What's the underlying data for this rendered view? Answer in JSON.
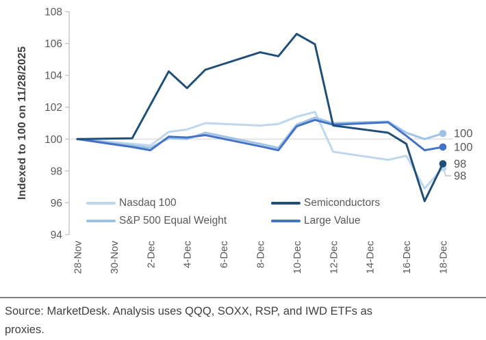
{
  "source": {
    "text": "Source: MarketDesk. Analysis uses QQQ, SOXX, RSP, and IWD ETFs as proxies."
  },
  "colors": {
    "axis": "#BFBFBF",
    "gridline": "#D9D9D9",
    "tick_text": "#595959",
    "end_label_text": "#595959",
    "connector": "#BFBFBF",
    "source_text": "#404040",
    "y_title_text": "#3F3F3F"
  },
  "chart_data": {
    "type": "line",
    "title": "",
    "ylabel": "Indexed to 100 on 11/28/2025",
    "xlabel": "",
    "ylim": [
      94,
      108
    ],
    "yticks": [
      94,
      96,
      98,
      100,
      102,
      104,
      106,
      108
    ],
    "gridline_value": 100,
    "grid": "only horizontal line at 100",
    "legend_position": "inside bottom, two columns",
    "x_axis": {
      "unit": "date",
      "range_day_offsets": [
        0,
        20
      ],
      "ticks": [
        {
          "d": 0,
          "label": "28-Nov"
        },
        {
          "d": 2,
          "label": "30-Nov"
        },
        {
          "d": 4,
          "label": "2-Dec"
        },
        {
          "d": 6,
          "label": "4-Dec"
        },
        {
          "d": 8,
          "label": "6-Dec"
        },
        {
          "d": 10,
          "label": "8-Dec"
        },
        {
          "d": 12,
          "label": "10-Dec"
        },
        {
          "d": 14,
          "label": "12-Dec"
        },
        {
          "d": 16,
          "label": "14-Dec"
        },
        {
          "d": 18,
          "label": "16-Dec"
        },
        {
          "d": 20,
          "label": "18-Dec"
        }
      ]
    },
    "point_dates": [
      "28-Nov",
      "1-Dec",
      "2-Dec",
      "3-Dec",
      "4-Dec",
      "5-Dec",
      "8-Dec",
      "9-Dec",
      "10-Dec",
      "11-Dec",
      "12-Dec",
      "15-Dec",
      "16-Dec",
      "17-Dec",
      "18-Dec"
    ],
    "point_day_offsets": [
      0,
      3,
      4,
      5,
      6,
      7,
      10,
      11,
      12,
      13,
      14,
      17,
      18,
      19,
      20
    ],
    "series": [
      {
        "name": "Nasdaq 100",
        "color": "#BDD7EE",
        "values": [
          100,
          99.7,
          99.6,
          100.45,
          100.6,
          101.0,
          100.85,
          100.95,
          101.4,
          101.7,
          99.2,
          98.7,
          98.95,
          96.9,
          98.2
        ],
        "end_label": "98",
        "end_label_dy": 12,
        "connector": true
      },
      {
        "name": "S&P 500 Equal Weight",
        "color": "#9DC3E6",
        "values": [
          100,
          99.6,
          99.45,
          100.05,
          100.0,
          100.4,
          99.7,
          99.45,
          100.9,
          101.35,
          101.0,
          101.1,
          100.4,
          100.0,
          100.35
        ],
        "end_label": "100",
        "end_label_dy": 0,
        "connector": false
      },
      {
        "name": "Large Value",
        "color": "#4472C4",
        "values": [
          100,
          99.5,
          99.3,
          100.15,
          100.1,
          100.25,
          99.55,
          99.3,
          100.8,
          101.2,
          100.9,
          101.05,
          100.2,
          99.3,
          99.5
        ],
        "end_label": "100",
        "end_label_dy": 0,
        "connector": false
      },
      {
        "name": "Semiconductors",
        "color": "#1F4E79",
        "values": [
          100,
          100.05,
          102.15,
          104.25,
          103.2,
          104.35,
          105.45,
          105.2,
          106.6,
          105.95,
          100.85,
          100.4,
          99.7,
          96.1,
          98.45
        ],
        "end_label": "98",
        "end_label_dy": 0,
        "connector": false
      }
    ],
    "end_labels": [
      "100",
      "100",
      "98",
      "98"
    ]
  },
  "legend": {
    "row1_col1": "Nasdaq 100",
    "row1_col2": "Semiconductors",
    "row2_col1": "S&P 500 Equal Weight",
    "row2_col2": "Large Value"
  }
}
